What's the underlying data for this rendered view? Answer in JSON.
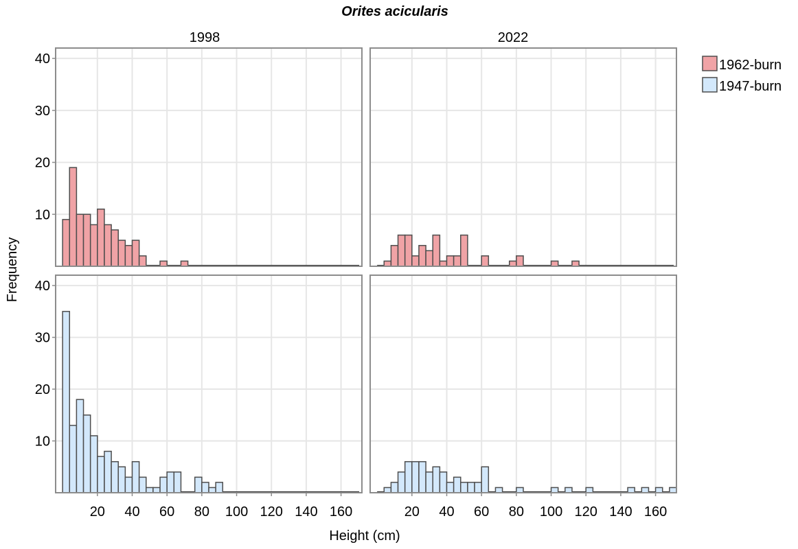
{
  "chart_data": {
    "type": "bar",
    "title": "Orites acicularis",
    "xlabel": "Height (cm)",
    "ylabel": "Frequency",
    "xlim": [
      -4,
      172
    ],
    "ylim": [
      0,
      42
    ],
    "x_ticks": [
      20,
      40,
      60,
      80,
      100,
      120,
      140,
      160
    ],
    "y_ticks": [
      10,
      20,
      30,
      40
    ],
    "bin_width": 4,
    "bins_start": [
      0,
      4,
      8,
      12,
      16,
      20,
      24,
      28,
      32,
      36,
      40,
      44,
      48,
      52,
      56,
      60,
      64,
      68,
      72,
      76,
      80,
      84,
      88,
      92,
      96,
      100,
      104,
      108,
      112,
      116,
      120,
      124,
      128,
      132,
      136,
      140,
      144,
      148,
      152,
      156,
      160,
      164,
      168
    ],
    "column_facets": [
      "1998",
      "2022"
    ],
    "grid": true,
    "legend_position": "right",
    "legend": [
      {
        "name": "1962-burn",
        "color": "#f0a3a6"
      },
      {
        "name": "1947-burn",
        "color": "#d3e8fb"
      }
    ],
    "series": [
      {
        "name": "1962-burn",
        "facet": "1998",
        "color": "#f0a3a6",
        "values": [
          9,
          19,
          10,
          10,
          8,
          11,
          8,
          7,
          5,
          4,
          5,
          2,
          0,
          0,
          1,
          0,
          0,
          1,
          0,
          0,
          0,
          0,
          0,
          0,
          0,
          0,
          0,
          0,
          0,
          0,
          0,
          0,
          0,
          0,
          0,
          0,
          0,
          0,
          0,
          0,
          0,
          0,
          0
        ]
      },
      {
        "name": "1962-burn",
        "facet": "2022",
        "color": "#f0a3a6",
        "values": [
          0,
          1,
          4,
          6,
          6,
          2,
          4,
          3,
          6,
          1,
          2,
          2,
          6,
          0,
          0,
          2,
          0,
          0,
          0,
          1,
          2,
          0,
          0,
          0,
          0,
          1,
          0,
          0,
          1,
          0,
          0,
          0,
          0,
          0,
          0,
          0,
          0,
          0,
          0,
          0,
          0,
          0,
          0
        ]
      },
      {
        "name": "1947-burn",
        "facet": "1998",
        "color": "#d3e8fb",
        "values": [
          35,
          13,
          18,
          15,
          11,
          7,
          8,
          6,
          5,
          3,
          6,
          3,
          1,
          1,
          3,
          4,
          4,
          0,
          0,
          3,
          2,
          1,
          2,
          0,
          0,
          0,
          0,
          0,
          0,
          0,
          0,
          0,
          0,
          0,
          0,
          0,
          0,
          0,
          0,
          0,
          0,
          0,
          0
        ]
      },
      {
        "name": "1947-burn",
        "facet": "2022",
        "color": "#d3e8fb",
        "values": [
          0,
          1,
          2,
          4,
          6,
          6,
          6,
          4,
          5,
          4,
          2,
          3,
          2,
          2,
          2,
          5,
          0,
          1,
          0,
          0,
          1,
          0,
          0,
          0,
          0,
          1,
          0,
          1,
          0,
          0,
          1,
          0,
          0,
          0,
          0,
          0,
          1,
          0,
          1,
          0,
          1,
          0,
          1
        ]
      }
    ]
  }
}
